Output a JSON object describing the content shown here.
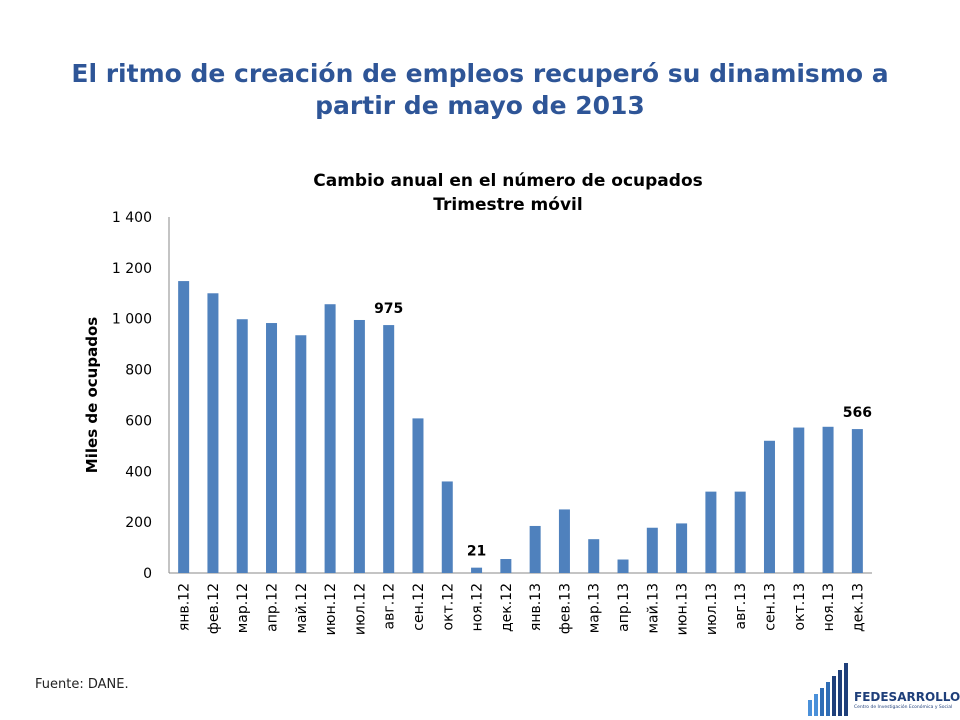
{
  "slide": {
    "title": "El ritmo de creación de empleos recuperó su dinamismo a partir de mayo de 2013",
    "source": "Fuente: DANE."
  },
  "logo": {
    "name": "FEDESARROLLO",
    "subtitle": "Centro de Investigación Económica y Social",
    "colors": [
      "#1F3F7A",
      "#4A90D9"
    ]
  },
  "chart_data": {
    "type": "bar",
    "title": "Cambio anual en el número de ocupados",
    "subtitle": "Trimestre móvil",
    "ylabel": "Miles de ocupados",
    "xlabel": "",
    "ylim": [
      0,
      1400
    ],
    "yticks": [
      0,
      200,
      400,
      600,
      800,
      1000,
      1200,
      1400
    ],
    "ytick_labels": [
      "0",
      "200",
      "400",
      "600",
      "800",
      "1 000",
      "1 200",
      "1 400"
    ],
    "grid": false,
    "bar_color": "#4F81BD",
    "categories": [
      "янв.12",
      "фев.12",
      "мар.12",
      "апр.12",
      "май.12",
      "июн.12",
      "июл.12",
      "авг.12",
      "сен.12",
      "окт.12",
      "ноя.12",
      "дек.12",
      "янв.13",
      "фев.13",
      "мар.13",
      "апр.13",
      "май.13",
      "июн.13",
      "июл.13",
      "авг.13",
      "сен.13",
      "окт.13",
      "ноя.13",
      "дек.13"
    ],
    "values": [
      1148,
      1100,
      998,
      983,
      935,
      1057,
      995,
      975,
      608,
      360,
      21,
      55,
      185,
      250,
      133,
      53,
      178,
      195,
      320,
      320,
      520,
      572,
      575,
      566
    ],
    "data_labels": [
      {
        "index": 7,
        "text": "975"
      },
      {
        "index": 10,
        "text": "21"
      },
      {
        "index": 23,
        "text": "566"
      }
    ]
  }
}
